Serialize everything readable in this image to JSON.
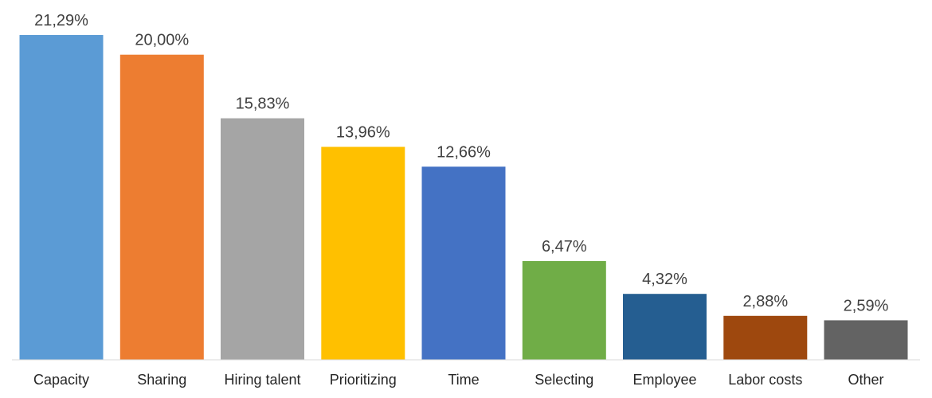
{
  "chart_data": {
    "type": "bar",
    "title": "",
    "xlabel": "",
    "ylabel": "",
    "categories": [
      "Capacity",
      "Sharing",
      "Hiring talent",
      "Prioritizing",
      "Time",
      "Selecting",
      "Employee",
      "Labor costs",
      "Other"
    ],
    "values": [
      21.29,
      20.0,
      15.83,
      13.96,
      12.66,
      6.47,
      4.32,
      2.88,
      2.59
    ],
    "value_labels": [
      "21,29%",
      "20,00%",
      "15,83%",
      "13,96%",
      "12,66%",
      "6,47%",
      "4,32%",
      "2,88%",
      "2,59%"
    ],
    "colors": [
      "#5B9BD5",
      "#ED7D31",
      "#A5A5A5",
      "#FFC000",
      "#4472C4",
      "#70AD47",
      "#255E91",
      "#9E480E",
      "#636363"
    ],
    "ylim": [
      0,
      21.29
    ],
    "grid": false,
    "legend": "none"
  }
}
